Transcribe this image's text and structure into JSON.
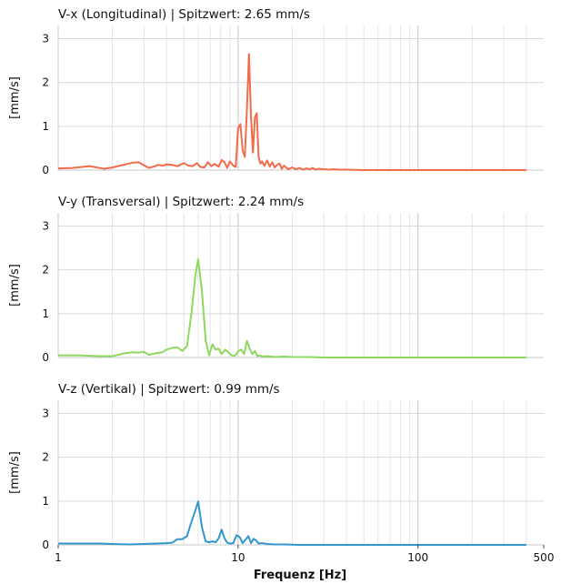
{
  "figure": {
    "xlabel": "Frequenz [Hz]",
    "x_ticks": [
      "1",
      "10",
      "100",
      "500"
    ]
  },
  "chart_data": [
    {
      "type": "line",
      "title": "V-x (Longitudinal) | Spitzwert: 2.65 mm/s",
      "ylabel": "[mm/s]",
      "x_scale": "log",
      "xlim": [
        1,
        500
      ],
      "ylim": [
        0,
        3.3
      ],
      "y_ticks": [
        "0",
        "1",
        "2",
        "3"
      ],
      "grid": true,
      "color": "#f26b4a",
      "series": [
        {
          "x": [
            1,
            1.2,
            1.5,
            1.8,
            2.0,
            2.3,
            2.6,
            2.8,
            3.0,
            3.2,
            3.4,
            3.6,
            3.8,
            4.0,
            4.3,
            4.6,
            5.0,
            5.3,
            5.6,
            5.9,
            6.2,
            6.5,
            6.8,
            7.1,
            7.4,
            7.8,
            8.1,
            8.4,
            8.7,
            9.0,
            9.4,
            9.7,
            10.0,
            10.3,
            10.6,
            10.9,
            11.2,
            11.5,
            11.8,
            12.1,
            12.4,
            12.7,
            13.0,
            13.3,
            13.6,
            14.0,
            14.5,
            15.0,
            15.5,
            16.0,
            16.5,
            17.0,
            17.5,
            18.0,
            19.0,
            20.0,
            21.0,
            22.0,
            23.0,
            24.0,
            25.0,
            26.0,
            27.0,
            28.0,
            30.0,
            32.0,
            34.0,
            36.0,
            40.0,
            50.0,
            70.0,
            100.0,
            200.0,
            400.0
          ],
          "y": [
            0.04,
            0.05,
            0.09,
            0.03,
            0.06,
            0.12,
            0.17,
            0.18,
            0.11,
            0.05,
            0.08,
            0.12,
            0.1,
            0.13,
            0.12,
            0.09,
            0.16,
            0.1,
            0.09,
            0.16,
            0.07,
            0.06,
            0.18,
            0.09,
            0.14,
            0.08,
            0.23,
            0.18,
            0.05,
            0.2,
            0.1,
            0.07,
            0.95,
            1.05,
            0.45,
            0.3,
            1.4,
            2.65,
            1.2,
            0.4,
            1.2,
            1.3,
            0.3,
            0.15,
            0.2,
            0.1,
            0.22,
            0.08,
            0.18,
            0.06,
            0.12,
            0.15,
            0.03,
            0.1,
            0.02,
            0.06,
            0.02,
            0.05,
            0.01,
            0.04,
            0.02,
            0.05,
            0.01,
            0.03,
            0.02,
            0.01,
            0.02,
            0.01,
            0.01,
            0.0,
            0.0,
            0.0,
            0.0,
            0.0
          ]
        }
      ]
    },
    {
      "type": "line",
      "title": "V-y (Transversal) | Spitzwert: 2.24 mm/s",
      "ylabel": "[mm/s]",
      "x_scale": "log",
      "xlim": [
        1,
        500
      ],
      "ylim": [
        0,
        3.3
      ],
      "y_ticks": [
        "0",
        "1",
        "2",
        "3"
      ],
      "grid": true,
      "color": "#8fd85f",
      "series": [
        {
          "x": [
            1,
            1.3,
            1.7,
            2.0,
            2.3,
            2.6,
            2.8,
            3.0,
            3.2,
            3.5,
            3.8,
            4.0,
            4.3,
            4.6,
            4.9,
            5.2,
            5.5,
            5.8,
            6.0,
            6.3,
            6.6,
            6.9,
            7.2,
            7.5,
            7.8,
            8.1,
            8.5,
            8.8,
            9.2,
            9.6,
            10.0,
            10.4,
            10.8,
            11.2,
            11.6,
            12.0,
            12.4,
            12.8,
            13.2,
            13.6,
            14.5,
            16.0,
            18.0,
            20.0,
            25.0,
            30.0,
            40.0,
            60.0,
            100.0,
            200.0,
            400.0
          ],
          "y": [
            0.05,
            0.05,
            0.03,
            0.03,
            0.09,
            0.12,
            0.11,
            0.13,
            0.06,
            0.1,
            0.12,
            0.18,
            0.22,
            0.23,
            0.15,
            0.26,
            1.0,
            1.9,
            2.24,
            1.5,
            0.4,
            0.05,
            0.3,
            0.18,
            0.2,
            0.08,
            0.18,
            0.12,
            0.05,
            0.04,
            0.14,
            0.18,
            0.08,
            0.38,
            0.2,
            0.08,
            0.15,
            0.03,
            0.05,
            0.02,
            0.03,
            0.01,
            0.02,
            0.01,
            0.01,
            0.0,
            0.0,
            0.0,
            0.0,
            0.0,
            0.0
          ]
        }
      ]
    },
    {
      "type": "line",
      "title": "V-z (Vertikal) | Spitzwert: 0.99 mm/s",
      "ylabel": "[mm/s]",
      "x_scale": "log",
      "xlim": [
        1,
        500
      ],
      "ylim": [
        0,
        3.3
      ],
      "y_ticks": [
        "0",
        "1",
        "2",
        "3"
      ],
      "grid": true,
      "color": "#3397cc",
      "series": [
        {
          "x": [
            1,
            1.3,
            1.7,
            2.0,
            2.5,
            3.0,
            3.5,
            4.0,
            4.3,
            4.6,
            4.9,
            5.2,
            5.5,
            5.8,
            6.0,
            6.3,
            6.6,
            6.9,
            7.2,
            7.5,
            7.8,
            8.1,
            8.4,
            8.7,
            9.0,
            9.4,
            9.8,
            10.2,
            10.6,
            11.0,
            11.4,
            11.8,
            12.2,
            12.6,
            13.0,
            13.6,
            14.5,
            16.0,
            18.0,
            22.0,
            30.0,
            50.0,
            100.0,
            200.0,
            400.0
          ],
          "y": [
            0.03,
            0.03,
            0.03,
            0.02,
            0.01,
            0.02,
            0.03,
            0.04,
            0.05,
            0.13,
            0.13,
            0.2,
            0.52,
            0.8,
            0.99,
            0.4,
            0.08,
            0.06,
            0.08,
            0.06,
            0.15,
            0.35,
            0.15,
            0.05,
            0.03,
            0.04,
            0.22,
            0.18,
            0.04,
            0.12,
            0.2,
            0.04,
            0.14,
            0.1,
            0.03,
            0.04,
            0.02,
            0.01,
            0.01,
            0.0,
            0.0,
            0.0,
            0.0,
            0.0,
            0.0
          ]
        }
      ]
    }
  ]
}
